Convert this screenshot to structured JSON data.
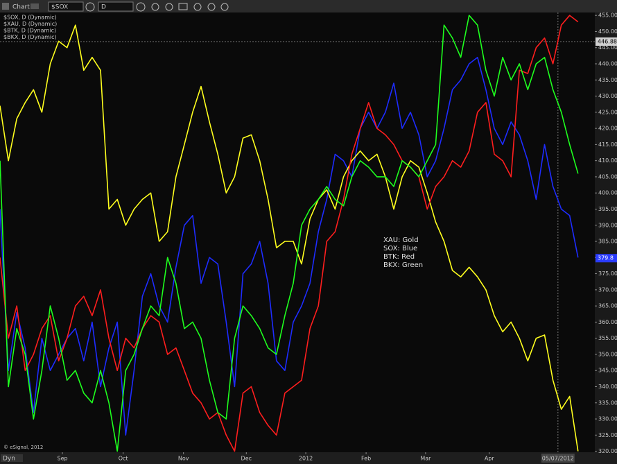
{
  "toolbar": {
    "title": "Chart",
    "symbol": "$SOX",
    "interval": "D"
  },
  "footer": {
    "mode": "Dyn",
    "copyright": "© eSignal, 2012"
  },
  "chart_data": {
    "type": "line",
    "ylim": [
      319.7,
      455.9
    ],
    "yticks": [
      {
        "value": 320,
        "label": "320.00"
      },
      {
        "value": 325,
        "label": "325.00"
      },
      {
        "value": 330,
        "label": "330.00"
      },
      {
        "value": 335,
        "label": "335.00"
      },
      {
        "value": 340,
        "label": "340.00"
      },
      {
        "value": 345,
        "label": "345.00"
      },
      {
        "value": 350,
        "label": "350.00"
      },
      {
        "value": 355,
        "label": "355.00"
      },
      {
        "value": 360,
        "label": "360.00"
      },
      {
        "value": 365,
        "label": "365.00"
      },
      {
        "value": 370,
        "label": "370.00"
      },
      {
        "value": 375,
        "label": "375.00"
      },
      {
        "value": 380,
        "label": "380.00"
      },
      {
        "value": 385,
        "label": "385.00"
      },
      {
        "value": 390,
        "label": "390.00"
      },
      {
        "value": 395,
        "label": "395.00"
      },
      {
        "value": 400,
        "label": "400.00"
      },
      {
        "value": 405,
        "label": "405.00"
      },
      {
        "value": 410,
        "label": "410.00"
      },
      {
        "value": 415,
        "label": "415.00"
      },
      {
        "value": 420,
        "label": "420.00"
      },
      {
        "value": 425,
        "label": "425.00"
      },
      {
        "value": 430,
        "label": "430.00"
      },
      {
        "value": 435,
        "label": "435.00"
      },
      {
        "value": 440,
        "label": "440.00"
      },
      {
        "value": 445,
        "label": "445.00"
      },
      {
        "value": 450,
        "label": "450.00"
      },
      {
        "value": 455,
        "label": "455.00"
      }
    ],
    "xlim": [
      0,
      71
    ],
    "xticks": [
      {
        "value": 7.45,
        "label": "Sep"
      },
      {
        "value": 14.7,
        "label": "Oct"
      },
      {
        "value": 21.9,
        "label": "Nov"
      },
      {
        "value": 29.4,
        "label": "Dec"
      },
      {
        "value": 36.5,
        "label": "2012"
      },
      {
        "value": 43.7,
        "label": "Feb"
      },
      {
        "value": 50.8,
        "label": "Mar"
      },
      {
        "value": 58.4,
        "label": "Apr"
      }
    ],
    "cursor": {
      "x": 66.6,
      "label": "05/07/2012"
    },
    "price_labels": [
      {
        "value": 446.88,
        "color": "#d0d0d0"
      },
      {
        "value": 379.8,
        "color": "#2a3cff"
      }
    ],
    "grid": false,
    "key": [
      "XAU:  Gold",
      "SOX:  Blue",
      "BTK:  Red",
      "BKX:  Green"
    ],
    "series": [
      {
        "name": "$SOX, D (Dynamic)",
        "color": "#1e2cff",
        "values": [
          395,
          345,
          363,
          352,
          332,
          355,
          345,
          350,
          355,
          358,
          348,
          360,
          340,
          352,
          360,
          325,
          345,
          368,
          375,
          365,
          360,
          377,
          390,
          393,
          372,
          380,
          378,
          360,
          340,
          375,
          378,
          385,
          372,
          348,
          345,
          360,
          365,
          372,
          388,
          398,
          412,
          410,
          405,
          420,
          425,
          420,
          425,
          434,
          420,
          425,
          418,
          405,
          410,
          420,
          432,
          435,
          440,
          442,
          432,
          420,
          415,
          422,
          418,
          410,
          398,
          415,
          402,
          395,
          393,
          380
        ]
      },
      {
        "name": "$XAU, D (Dynamic)",
        "color": "#ffff1e",
        "values": [
          427,
          410,
          423,
          428,
          432,
          425,
          440,
          447,
          445,
          452,
          438,
          442,
          438,
          395,
          398,
          390,
          395,
          398,
          400,
          385,
          388,
          405,
          415,
          425,
          433,
          422,
          412,
          400,
          405,
          417,
          418,
          410,
          398,
          383,
          385,
          385,
          378,
          392,
          398,
          401,
          395,
          405,
          410,
          413,
          410,
          412,
          405,
          395,
          405,
          410,
          408,
          400,
          391,
          385,
          376,
          374,
          377,
          374,
          370,
          362,
          357,
          360,
          355,
          348,
          355,
          356,
          342,
          333,
          337,
          320
        ]
      },
      {
        "name": "$BTK, D (Dynamic)",
        "color": "#ff1e1e",
        "values": [
          380,
          355,
          365,
          345,
          350,
          358,
          362,
          348,
          355,
          365,
          368,
          362,
          370,
          355,
          345,
          355,
          352,
          358,
          362,
          360,
          350,
          352,
          345,
          338,
          335,
          330,
          332,
          325,
          320,
          338,
          340,
          332,
          328,
          325,
          338,
          340,
          342,
          358,
          365,
          385,
          388,
          398,
          412,
          420,
          428,
          420,
          418,
          415,
          410,
          408,
          405,
          395,
          402,
          405,
          410,
          408,
          413,
          425,
          428,
          412,
          410,
          405,
          438,
          437,
          445,
          448,
          440,
          452,
          455,
          453
        ]
      },
      {
        "name": "$BKX, D (Dynamic)",
        "color": "#1eff1e",
        "values": [
          410,
          340,
          358,
          350,
          330,
          345,
          365,
          355,
          342,
          345,
          338,
          335,
          345,
          335,
          320,
          345,
          350,
          358,
          365,
          362,
          380,
          372,
          358,
          360,
          355,
          342,
          332,
          330,
          355,
          365,
          362,
          358,
          352,
          350,
          362,
          372,
          390,
          395,
          398,
          402,
          398,
          396,
          405,
          410,
          408,
          405,
          405,
          402,
          410,
          408,
          405,
          410,
          415,
          452,
          448,
          442,
          455,
          452,
          438,
          430,
          442,
          435,
          440,
          432,
          440,
          442,
          432,
          425,
          415,
          406
        ]
      }
    ]
  }
}
